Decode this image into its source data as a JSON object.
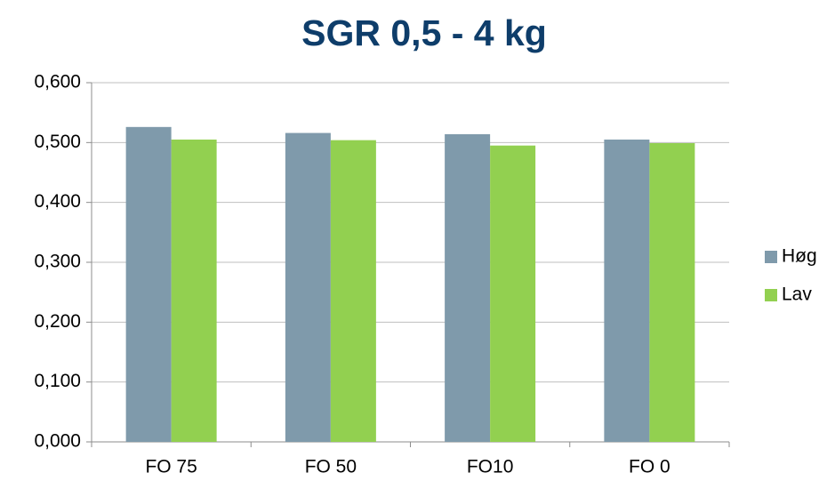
{
  "chart_data": {
    "type": "bar",
    "title": "SGR 0,5 - 4 kg",
    "categories": [
      "FO 75",
      "FO 50",
      "FO10",
      "FO 0"
    ],
    "series": [
      {
        "name": "Høg",
        "color": "#7f9aab",
        "values": [
          0.526,
          0.516,
          0.514,
          0.505
        ]
      },
      {
        "name": "Lav",
        "color": "#92d050",
        "values": [
          0.505,
          0.504,
          0.495,
          0.499
        ]
      }
    ],
    "ylim": [
      0,
      0.6
    ],
    "yticks": [
      {
        "value": 0,
        "label": "0,000"
      },
      {
        "value": 0.1,
        "label": "0,100"
      },
      {
        "value": 0.2,
        "label": "0,200"
      },
      {
        "value": 0.3,
        "label": "0,300"
      },
      {
        "value": 0.4,
        "label": "0,400"
      },
      {
        "value": 0.5,
        "label": "0,500"
      },
      {
        "value": 0.6,
        "label": "0,600"
      }
    ],
    "grid": true,
    "legend": "right"
  }
}
